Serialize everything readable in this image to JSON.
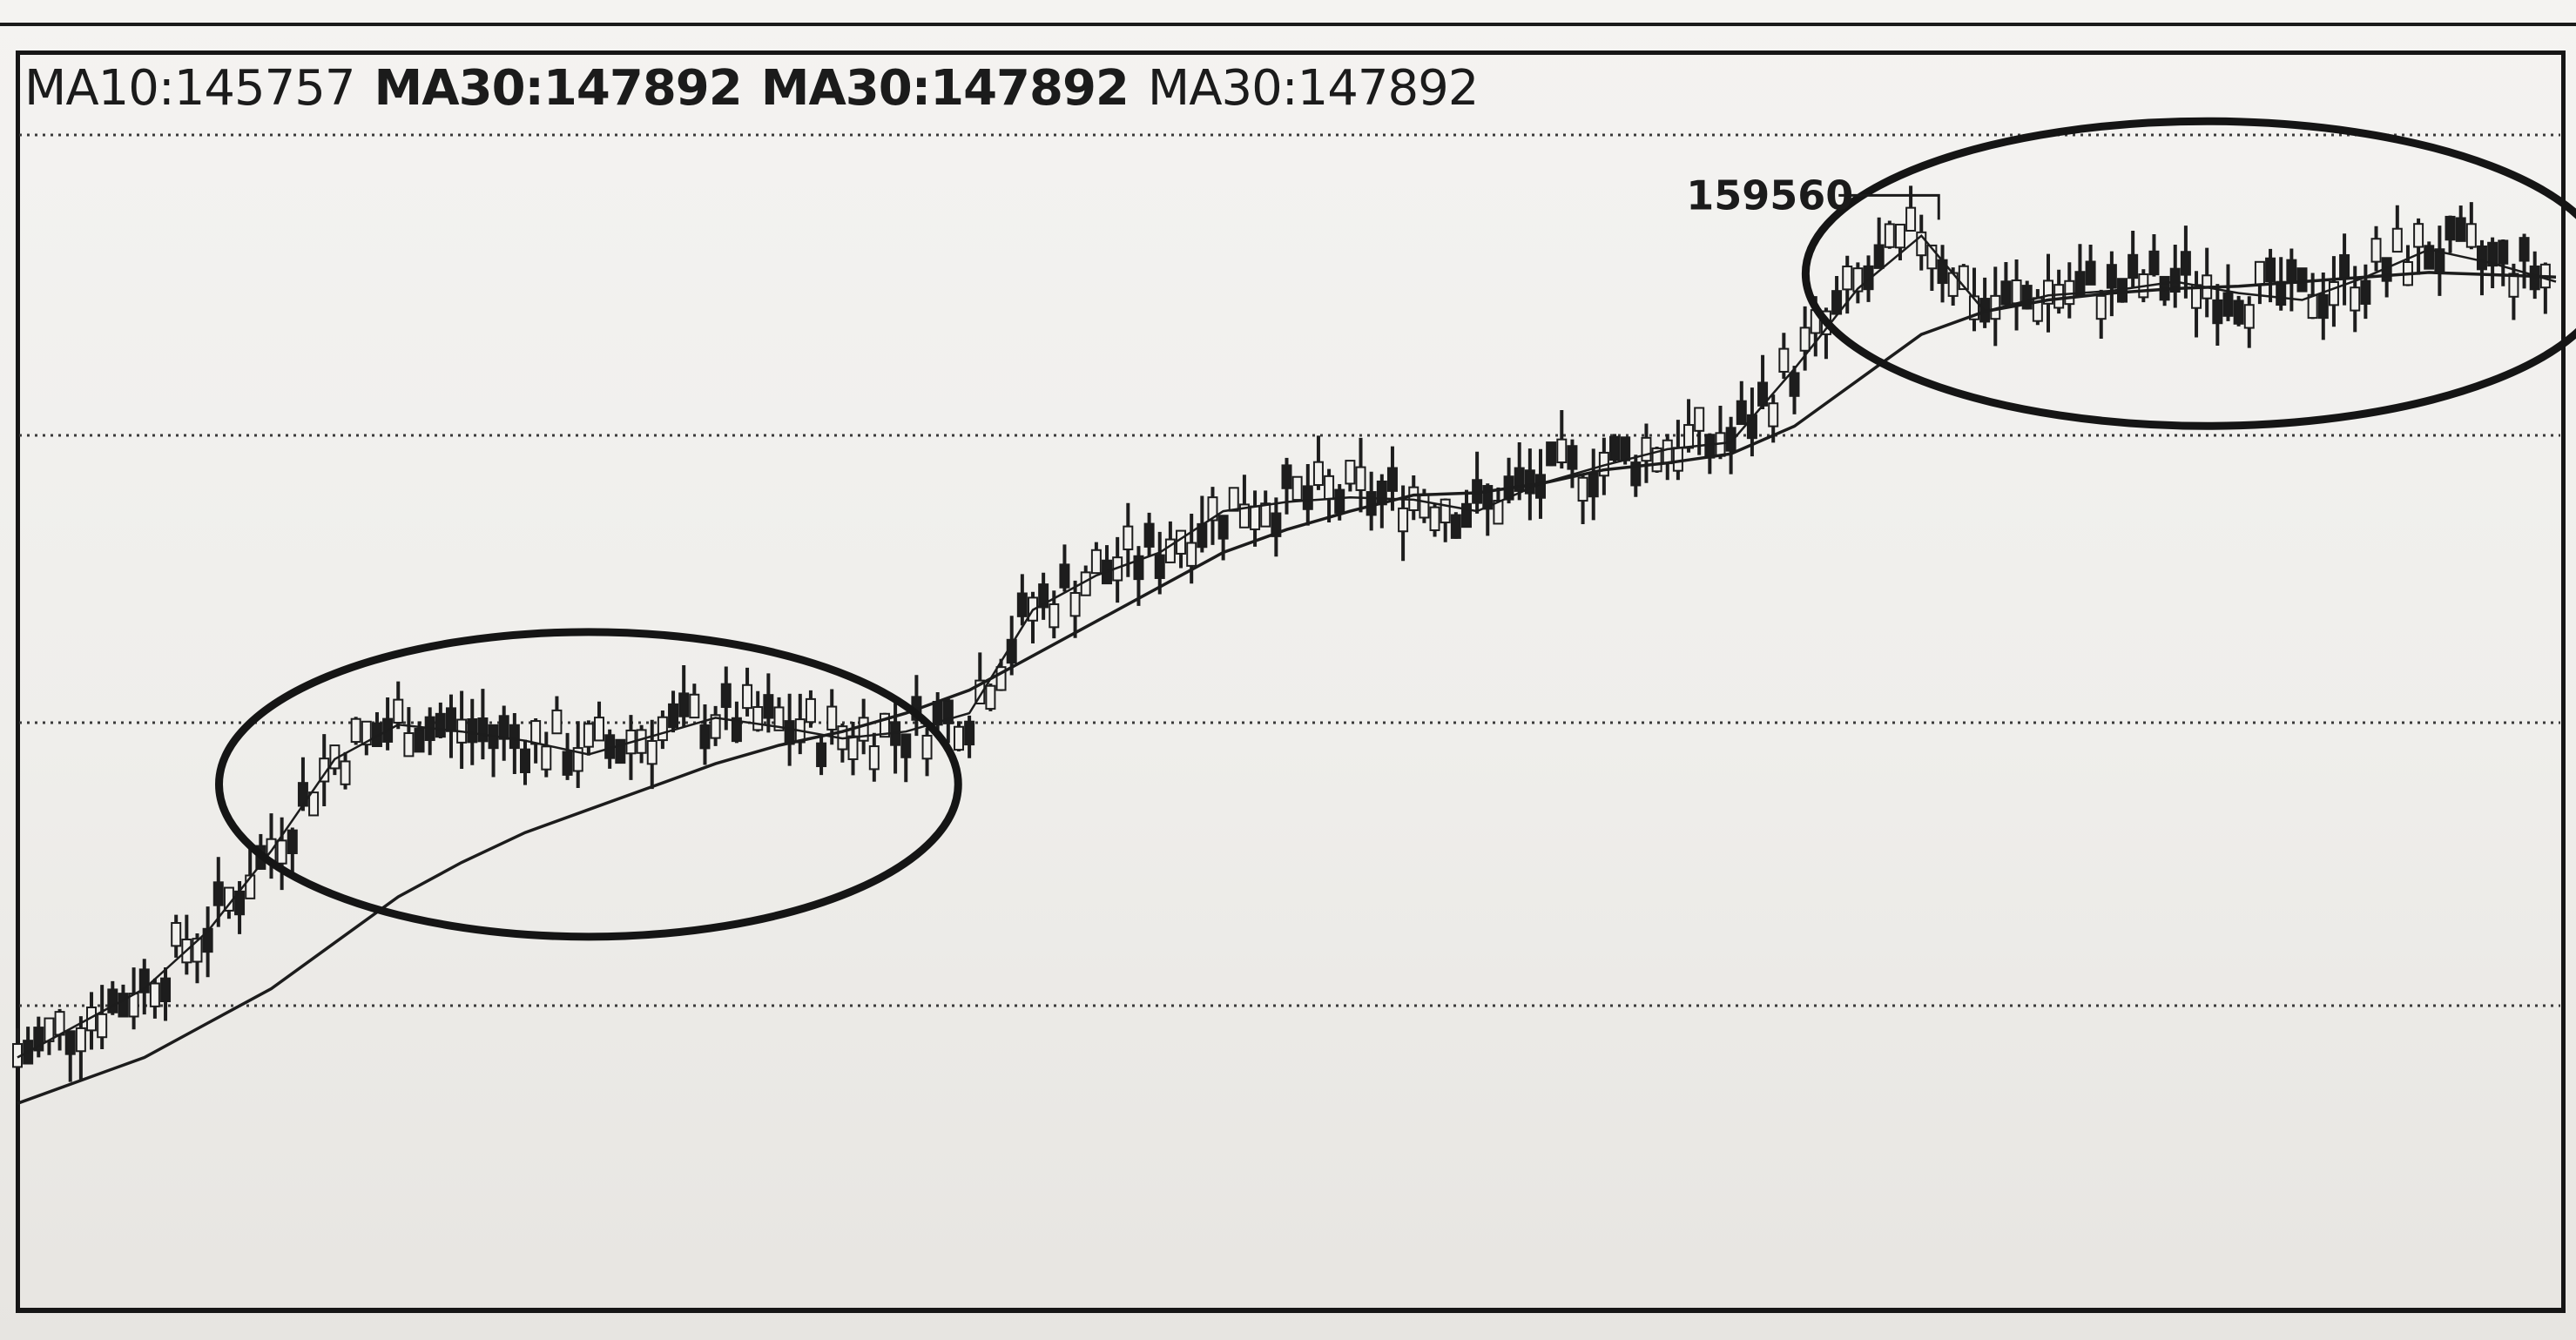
{
  "legend": {
    "items": [
      {
        "text": "MA10:145757",
        "bold": false
      },
      {
        "text": "MA30:147892",
        "bold": true
      },
      {
        "text": "MA30:147892",
        "bold": true
      },
      {
        "text": "MA30:147892",
        "bold": false
      }
    ]
  },
  "chart_data": {
    "type": "line",
    "title": "",
    "xlabel": "",
    "ylabel": "",
    "ylim": [
      118000,
      162000
    ],
    "grid": true,
    "legend_placement": "top-left",
    "series": [
      {
        "name": "MA10",
        "values": [
          122000,
          123500,
          125000,
          127500,
          131000,
          135000,
          136500,
          136200,
          135800,
          135200,
          136000,
          136800,
          136400,
          135900,
          136200,
          137000,
          141500,
          143000,
          144000,
          145800,
          146200,
          146400,
          146300,
          145800,
          147000,
          147800,
          148500,
          148800,
          152000,
          155500,
          157800,
          154500,
          155200,
          155400,
          155800,
          155300,
          155000,
          156000,
          157200,
          156600,
          155800
        ]
      },
      {
        "name": "MA30",
        "values": [
          120000,
          121000,
          122000,
          123500,
          125000,
          127000,
          129000,
          130500,
          131800,
          132800,
          133800,
          134800,
          135600,
          136200,
          137000,
          138000,
          139500,
          141000,
          142500,
          144000,
          145000,
          145800,
          146500,
          146600,
          147000,
          147600,
          147900,
          148300,
          149500,
          151500,
          153500,
          154500,
          155000,
          155300,
          155500,
          155600,
          155800,
          156000,
          156200,
          156100,
          156000
        ]
      }
    ],
    "peak_label": "159560",
    "peak_value": 159560,
    "highlight_ranges": [
      {
        "from_index": 4,
        "to_index": 14
      },
      {
        "from_index": 29,
        "to_index": 40
      }
    ]
  }
}
